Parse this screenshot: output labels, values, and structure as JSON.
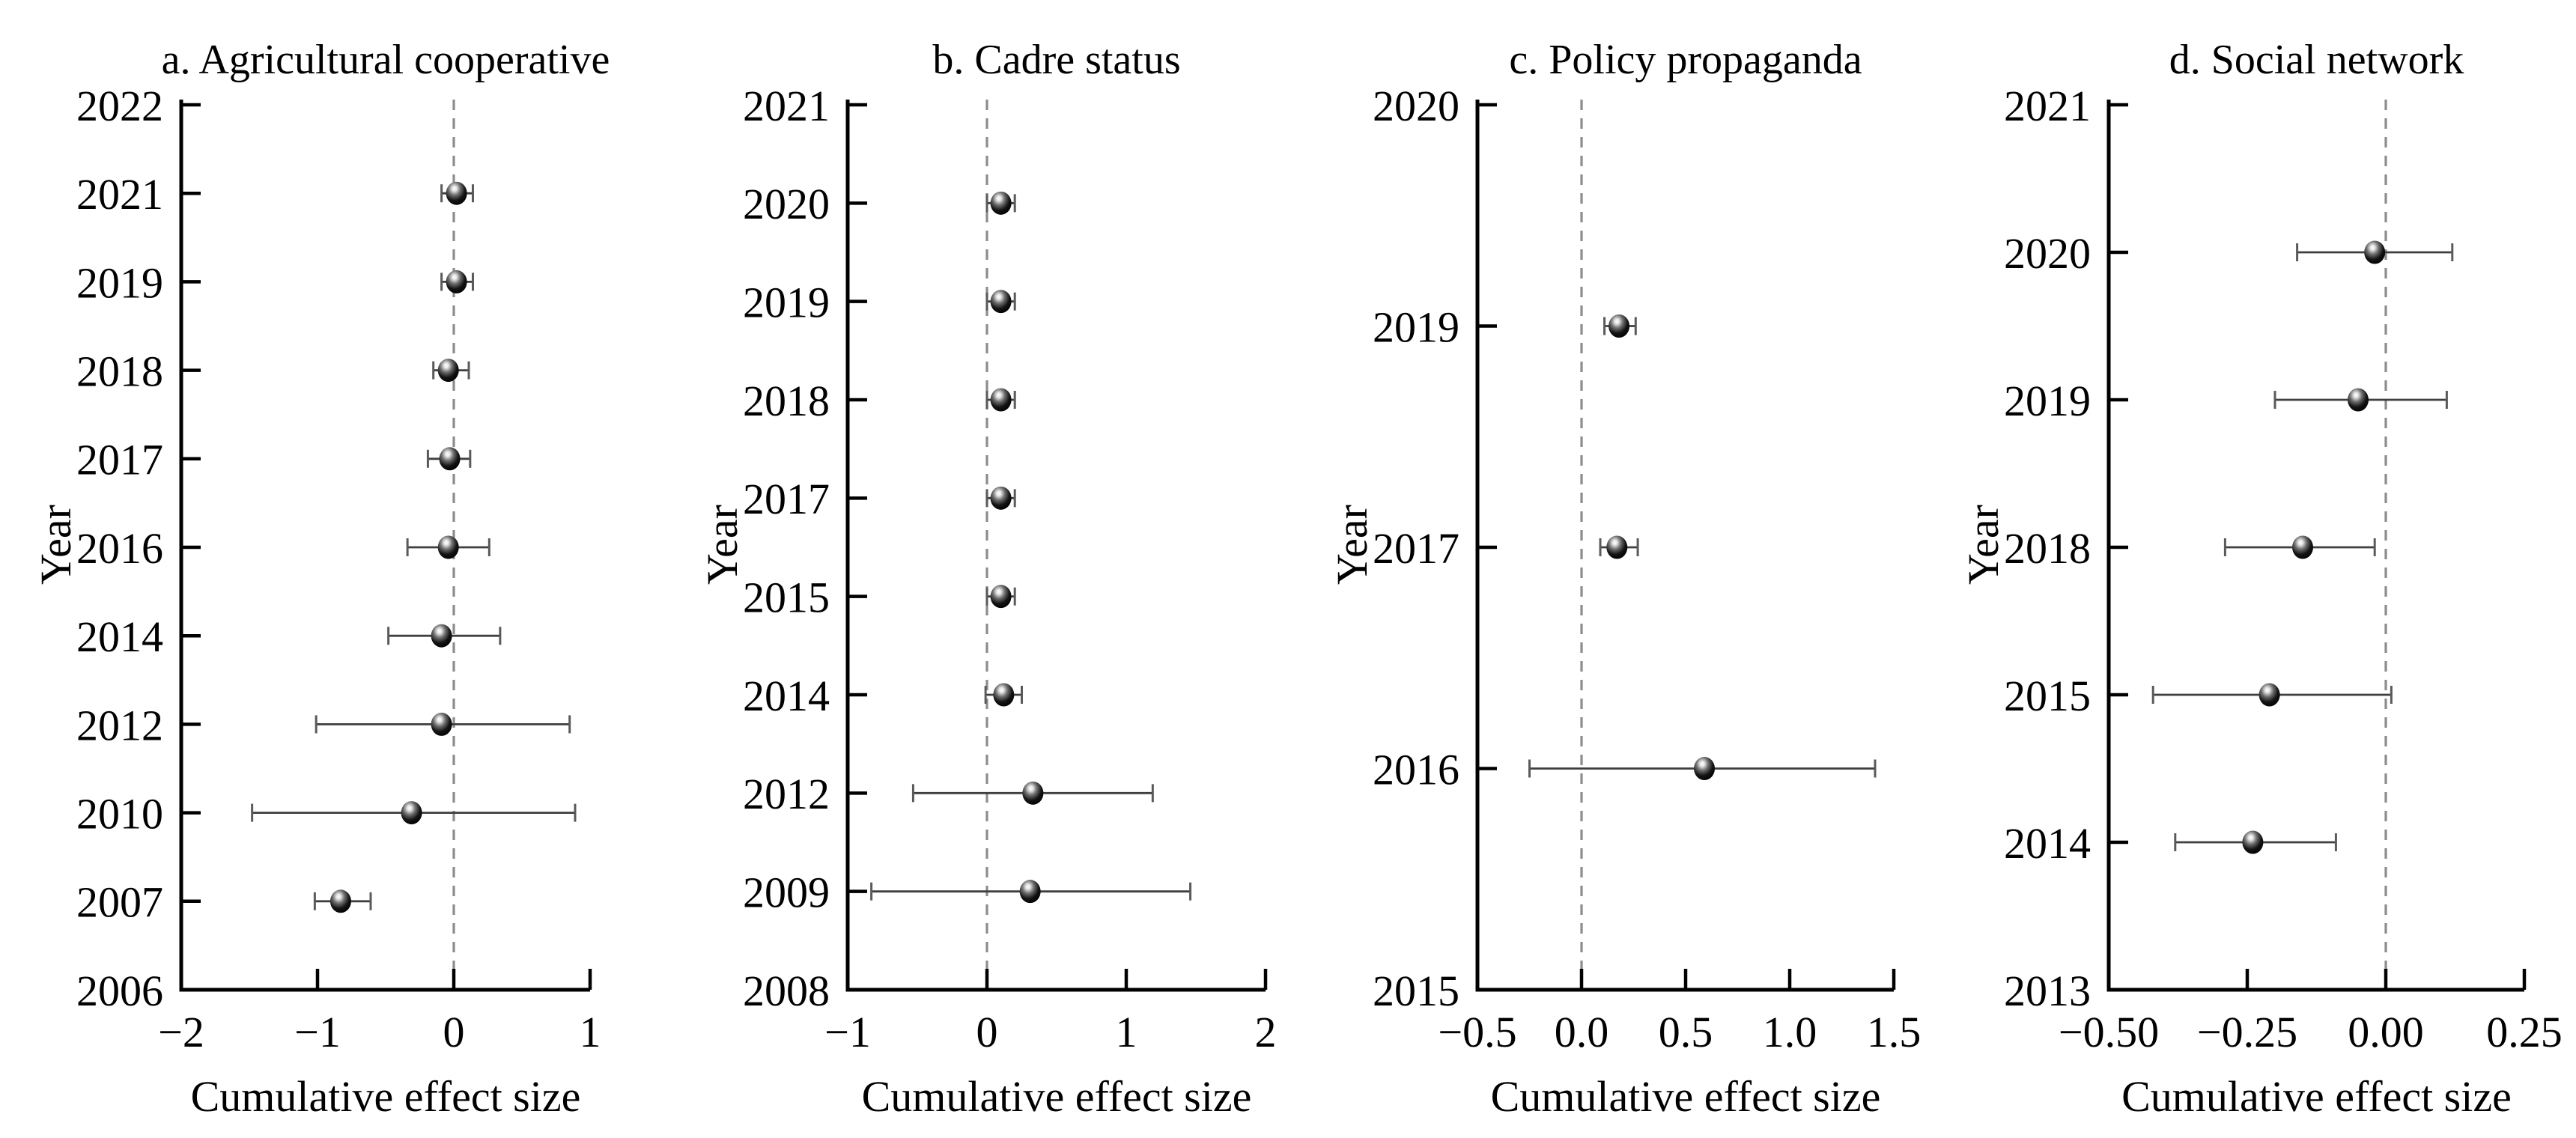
{
  "figure": {
    "kind": "cumulative-meta-analysis-forest-plots",
    "background": "#ffffff"
  },
  "styles": {
    "axis_color": "#000000",
    "text_color": "#000000",
    "zero_line_color": "#8c8c8c",
    "error_bar_color": "#3f3f3f",
    "error_cap_color": "#5a5a5a",
    "marker_color": "#000000",
    "marker_highlight": "#ffffff"
  },
  "chart_data": [
    {
      "type": "scatter",
      "panel_id": "a",
      "title": "a. Agricultural cooperative",
      "xlabel": "Cumulative effect size",
      "ylabel": "Year",
      "grid": "off",
      "zero_reference_line": 0,
      "y_categories": [
        "2022",
        "2021",
        "2019",
        "2018",
        "2017",
        "2016",
        "2014",
        "2012",
        "2010",
        "2007",
        "2006"
      ],
      "x_ticks": [
        {
          "v": -2,
          "label": "−2"
        },
        {
          "v": -1,
          "label": "−1"
        },
        {
          "v": 0,
          "label": "0"
        },
        {
          "v": 1,
          "label": "1"
        }
      ],
      "xlim": [
        -2,
        1
      ],
      "points": [
        {
          "year": "2021",
          "est": 0.02,
          "lo": -0.09,
          "hi": 0.14
        },
        {
          "year": "2019",
          "est": 0.02,
          "lo": -0.09,
          "hi": 0.14
        },
        {
          "year": "2018",
          "est": -0.04,
          "lo": -0.15,
          "hi": 0.11
        },
        {
          "year": "2017",
          "est": -0.03,
          "lo": -0.19,
          "hi": 0.12
        },
        {
          "year": "2016",
          "est": -0.04,
          "lo": -0.34,
          "hi": 0.26
        },
        {
          "year": "2014",
          "est": -0.09,
          "lo": -0.48,
          "hi": 0.34
        },
        {
          "year": "2012",
          "est": -0.09,
          "lo": -1.01,
          "hi": 0.85
        },
        {
          "year": "2010",
          "est": -0.31,
          "lo": -1.48,
          "hi": 0.89
        },
        {
          "year": "2007",
          "est": -0.83,
          "lo": -1.02,
          "hi": -0.61
        }
      ]
    },
    {
      "type": "scatter",
      "panel_id": "b",
      "title": "b. Cadre status",
      "xlabel": "Cumulative effect size",
      "ylabel": "Year",
      "grid": "off",
      "zero_reference_line": 0,
      "y_categories": [
        "2021",
        "2020",
        "2019",
        "2018",
        "2017",
        "2015",
        "2014",
        "2012",
        "2009",
        "2008"
      ],
      "x_ticks": [
        {
          "v": -1,
          "label": "−1"
        },
        {
          "v": 0,
          "label": "0"
        },
        {
          "v": 1,
          "label": "1"
        },
        {
          "v": 2,
          "label": "2"
        }
      ],
      "xlim": [
        -1,
        2
      ],
      "points": [
        {
          "year": "2020",
          "est": 0.1,
          "lo": 0.0,
          "hi": 0.2
        },
        {
          "year": "2019",
          "est": 0.1,
          "lo": 0.0,
          "hi": 0.2
        },
        {
          "year": "2018",
          "est": 0.1,
          "lo": 0.0,
          "hi": 0.2
        },
        {
          "year": "2017",
          "est": 0.1,
          "lo": 0.0,
          "hi": 0.2
        },
        {
          "year": "2015",
          "est": 0.1,
          "lo": 0.0,
          "hi": 0.2
        },
        {
          "year": "2014",
          "est": 0.12,
          "lo": -0.01,
          "hi": 0.25
        },
        {
          "year": "2012",
          "est": 0.33,
          "lo": -0.53,
          "hi": 1.19
        },
        {
          "year": "2009",
          "est": 0.31,
          "lo": -0.83,
          "hi": 1.46
        }
      ]
    },
    {
      "type": "scatter",
      "panel_id": "c",
      "title": "c. Policy propaganda",
      "xlabel": "Cumulative effect size",
      "ylabel": "Year",
      "grid": "off",
      "zero_reference_line": 0,
      "y_categories": [
        "2020",
        "2019",
        "2017",
        "2016",
        "2015"
      ],
      "x_ticks": [
        {
          "v": -0.5,
          "label": "−0.5"
        },
        {
          "v": 0,
          "label": "0.0"
        },
        {
          "v": 0.5,
          "label": "0.5"
        },
        {
          "v": 1,
          "label": "1.0"
        },
        {
          "v": 1.5,
          "label": "1.5"
        }
      ],
      "xlim": [
        -0.5,
        1.5
      ],
      "points": [
        {
          "year": "2019",
          "est": 0.18,
          "lo": 0.11,
          "hi": 0.26
        },
        {
          "year": "2017",
          "est": 0.17,
          "lo": 0.09,
          "hi": 0.27
        },
        {
          "year": "2016",
          "est": 0.59,
          "lo": -0.25,
          "hi": 1.41
        }
      ]
    },
    {
      "type": "scatter",
      "panel_id": "d",
      "title": "d. Social network",
      "xlabel": "Cumulative effect size",
      "ylabel": "Year",
      "grid": "off",
      "zero_reference_line": 0,
      "y_categories": [
        "2021",
        "2020",
        "2019",
        "2018",
        "2015",
        "2014",
        "2013"
      ],
      "x_ticks": [
        {
          "v": -0.5,
          "label": "−0.50"
        },
        {
          "v": -0.25,
          "label": "−0.25"
        },
        {
          "v": 0,
          "label": "0.00"
        },
        {
          "v": 0.25,
          "label": "0.25"
        }
      ],
      "xlim": [
        -0.5,
        0.25
      ],
      "points": [
        {
          "year": "2020",
          "est": -0.02,
          "lo": -0.16,
          "hi": 0.12
        },
        {
          "year": "2019",
          "est": -0.05,
          "lo": -0.2,
          "hi": 0.11
        },
        {
          "year": "2018",
          "est": -0.15,
          "lo": -0.29,
          "hi": -0.02
        },
        {
          "year": "2015",
          "est": -0.21,
          "lo": -0.42,
          "hi": 0.01
        },
        {
          "year": "2014",
          "est": -0.24,
          "lo": -0.38,
          "hi": -0.09
        }
      ]
    }
  ]
}
